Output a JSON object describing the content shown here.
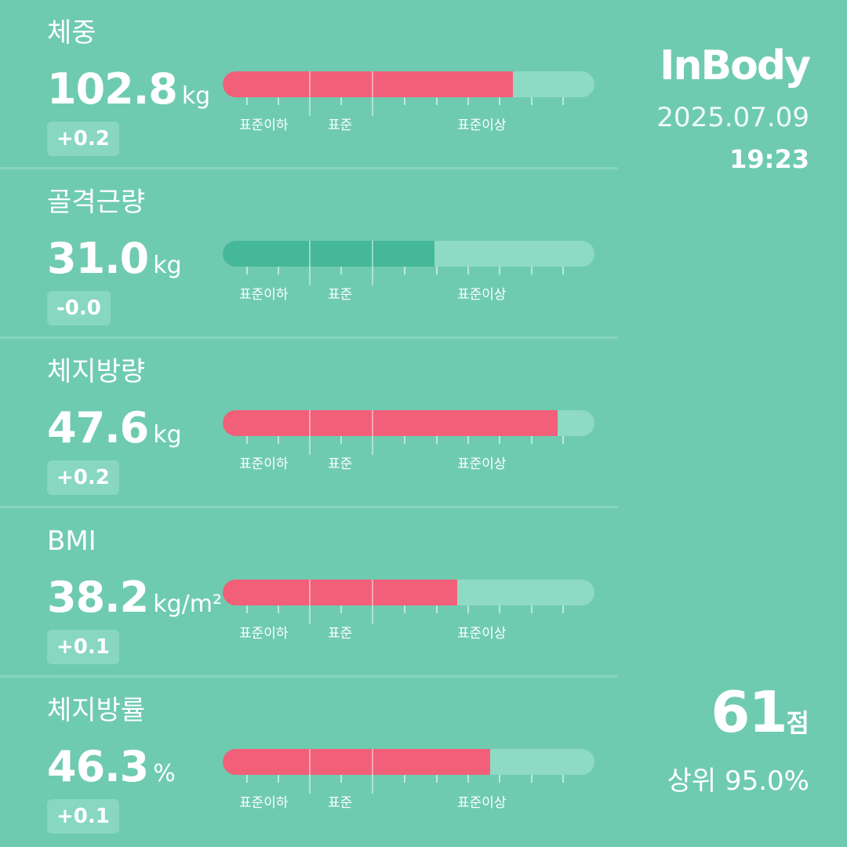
{
  "brand": {
    "logo": "InBody"
  },
  "measurement": {
    "date": "2025.07.09",
    "time": "19:23"
  },
  "scale_labels": {
    "below": "표준이하",
    "standard": "표준",
    "above": "표준이상"
  },
  "metrics": [
    {
      "label": "체중",
      "value": "102.8",
      "unit": "kg",
      "change": "+0.2",
      "status": "above",
      "bar_fill_percent": 78,
      "bar_color": "#f15f79"
    },
    {
      "label": "골격근량",
      "value": "31.0",
      "unit": "kg",
      "change": "-0.0",
      "status": "standard",
      "bar_fill_percent": 57,
      "bar_color": "#45b897"
    },
    {
      "label": "체지방량",
      "value": "47.6",
      "unit": "kg",
      "change": "+0.2",
      "status": "above",
      "bar_fill_percent": 90,
      "bar_color": "#f15f79"
    },
    {
      "label": "BMI",
      "value": "38.2",
      "unit": "kg/m²",
      "change": "+0.1",
      "status": "above",
      "bar_fill_percent": 63,
      "bar_color": "#f15f79"
    },
    {
      "label": "체지방률",
      "value": "46.3",
      "unit": "%",
      "change": "+0.1",
      "status": "above",
      "bar_fill_percent": 72,
      "bar_color": "#f15f79"
    }
  ],
  "score": {
    "value": "61",
    "unit": "점",
    "rank_text": "상위 95.0%"
  },
  "colors": {
    "background": "#6fcbb0",
    "over": "#f15f79",
    "normal": "#45b897",
    "track": "#8fdac3"
  }
}
